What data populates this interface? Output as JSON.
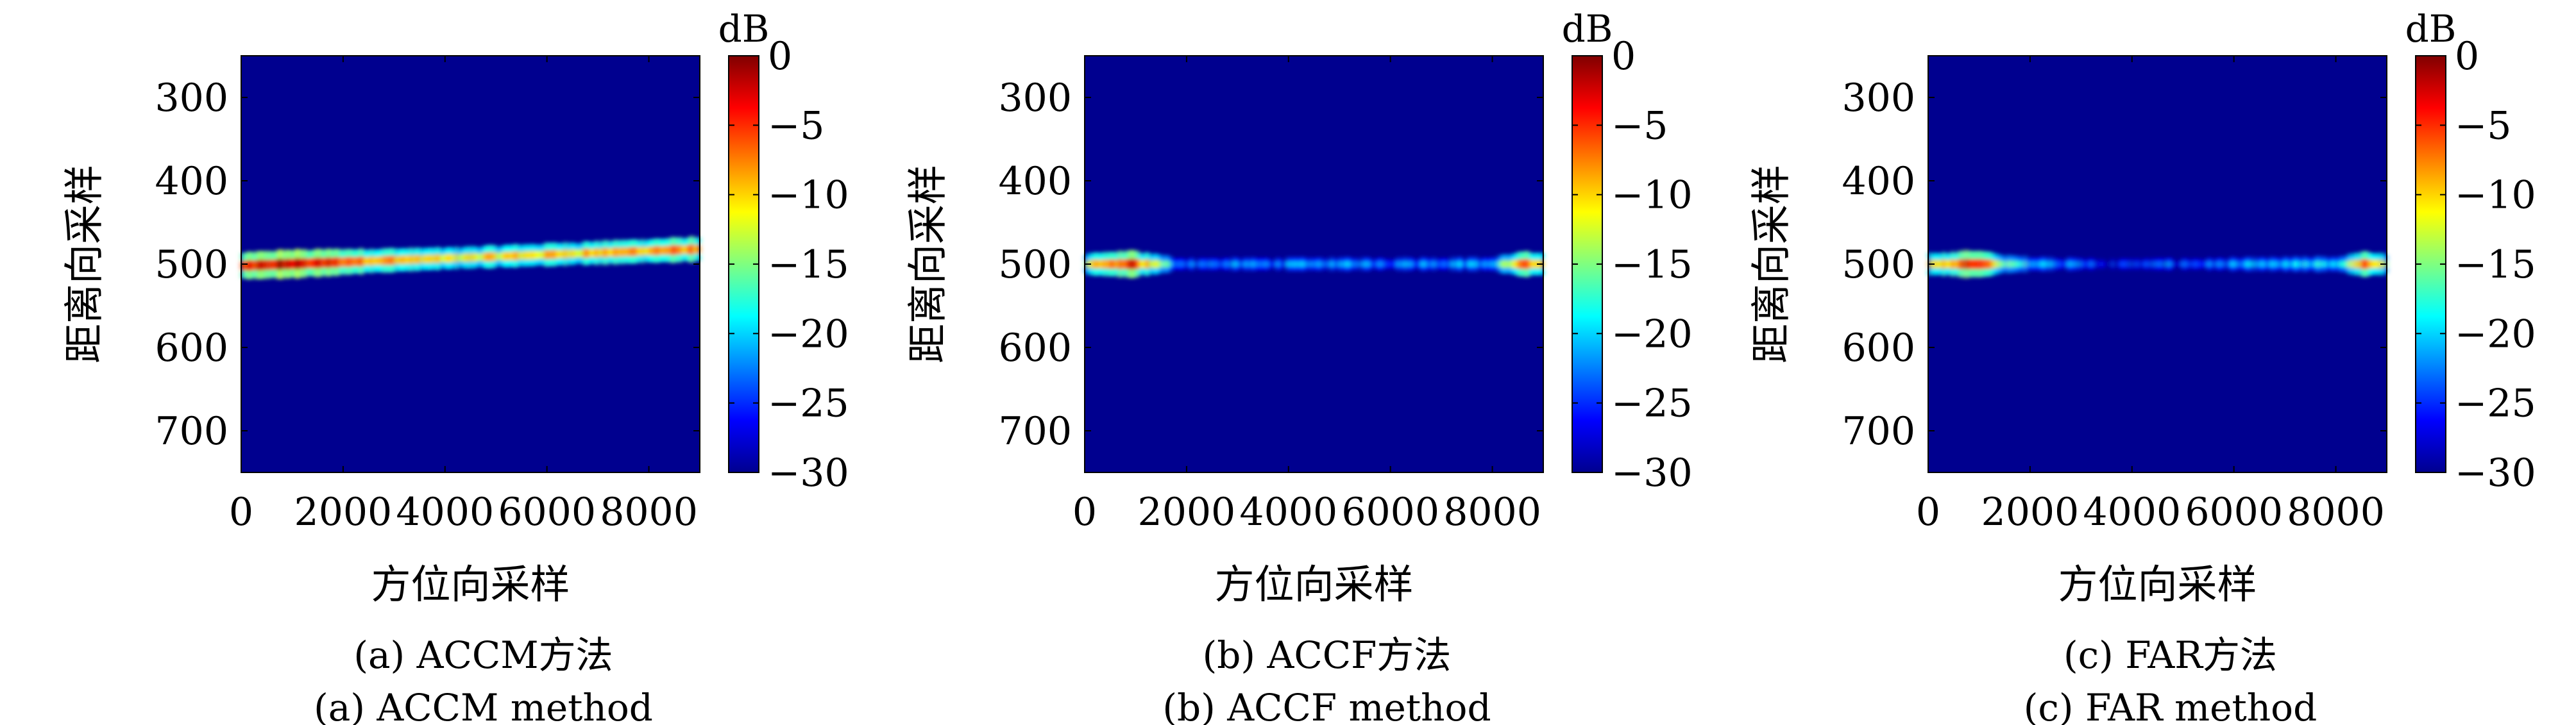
{
  "chart_data": [
    {
      "type": "heatmap",
      "caption_cn": "(a) ACCM方法",
      "caption_en": "(a) ACCM method",
      "xlabel": "方位向采样",
      "ylabel": "距离向采样",
      "xlim": [
        0,
        9000
      ],
      "ylim": [
        250,
        750
      ],
      "x_ticks": [
        "0",
        "2000",
        "4000",
        "6000",
        "8000"
      ],
      "y_ticks": [
        "300",
        "400",
        "500",
        "600",
        "700"
      ],
      "colorbar": {
        "unit": "dB",
        "range": [
          -30,
          0
        ],
        "ticks": [
          "0",
          "−5",
          "−10",
          "−15",
          "−20",
          "−25",
          "−30"
        ]
      },
      "energy_profile": {
        "x": [
          0,
          900,
          4000,
          6000,
          8400,
          9000
        ],
        "db": [
          -6,
          -2,
          -12,
          -10,
          -8,
          -7
        ]
      },
      "line_range": [
        502,
        482
      ]
    },
    {
      "type": "heatmap",
      "caption_cn": "(b) ACCF方法",
      "caption_en": "(b) ACCF method",
      "xlabel": "方位向采样",
      "ylabel": "距离向采样",
      "xlim": [
        0,
        9000
      ],
      "ylim": [
        250,
        750
      ],
      "x_ticks": [
        "0",
        "2000",
        "4000",
        "6000",
        "8000"
      ],
      "y_ticks": [
        "300",
        "400",
        "500",
        "600",
        "700"
      ],
      "colorbar": {
        "unit": "dB",
        "range": [
          -30,
          0
        ],
        "ticks": [
          "0",
          "−5",
          "−10",
          "−15",
          "−20",
          "−25",
          "−30"
        ]
      },
      "energy_profile": {
        "x": [
          0,
          900,
          1600,
          2000,
          8000,
          8600,
          9000
        ],
        "db": [
          -14,
          -4,
          -18,
          -24,
          -22,
          -6,
          -14
        ]
      },
      "line_range": [
        500,
        500
      ]
    },
    {
      "type": "heatmap",
      "caption_cn": "(c) FAR方法",
      "caption_en": "(c) FAR method",
      "xlabel": "方位向采样",
      "ylabel": "距离向采样",
      "xlim": [
        0,
        9000
      ],
      "ylim": [
        250,
        750
      ],
      "x_ticks": [
        "0",
        "2000",
        "4000",
        "6000",
        "8000"
      ],
      "y_ticks": [
        "300",
        "400",
        "500",
        "600",
        "700"
      ],
      "colorbar": {
        "unit": "dB",
        "range": [
          -30,
          0
        ],
        "ticks": [
          "0",
          "−5",
          "−10",
          "−15",
          "−20",
          "−25",
          "−30"
        ]
      },
      "energy_profile": {
        "x": [
          0,
          900,
          1600,
          3500,
          6500,
          8000,
          8600,
          9000
        ],
        "db": [
          -12,
          -3,
          -18,
          -27,
          -23,
          -20,
          -7,
          -14
        ]
      },
      "line_range": [
        500,
        500
      ]
    }
  ]
}
